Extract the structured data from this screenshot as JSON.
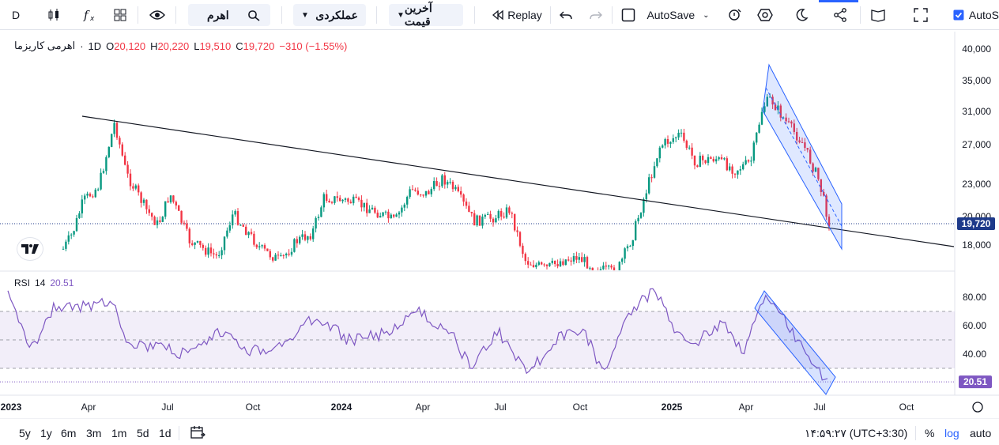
{
  "toolbar": {
    "symbol_short": "D",
    "search_value": "اهرم",
    "compare_label": "عملکردی",
    "price_type_label": "آخرین قیمت",
    "replay_label": "Replay",
    "autosave_label": "AutoSave",
    "autoscale_label": "AutoS"
  },
  "legend": {
    "symbol": "اهرمی کاریزما",
    "interval": "1D",
    "o_label": "O",
    "o": "20,120",
    "h_label": "H",
    "h": "20,220",
    "l_label": "L",
    "l": "19,510",
    "c_label": "C",
    "c": "19,720",
    "change": "−310 (−1.55%)"
  },
  "rsi": {
    "label": "RSI",
    "length": "14",
    "value": "20.51"
  },
  "price_axis": {
    "ticks": [
      "40,000",
      "35,000",
      "31,000",
      "27,000",
      "23,000",
      "18,000"
    ],
    "current_price": "19,720",
    "hidden_tick": "20,000"
  },
  "rsi_axis": {
    "ticks": [
      "80.00",
      "60.00",
      "40.00"
    ],
    "current_value": "20.51"
  },
  "time_axis": [
    "2023",
    "Apr",
    "Jul",
    "Oct",
    "2024",
    "Apr",
    "Jul",
    "Oct",
    "2025",
    "Apr",
    "Jul",
    "Oct"
  ],
  "bottom": {
    "ranges": [
      "5y",
      "1y",
      "6m",
      "3m",
      "1m",
      "5d",
      "1d"
    ],
    "clock": "۱۴:۵۹:۲۷ (UTC+3:30)",
    "percent_label": "%",
    "log_label": "log",
    "auto_label": "auto"
  },
  "colors": {
    "up": "#089981",
    "down": "#f23645",
    "rsi_line": "#7e57c2",
    "channel": "#2962ff",
    "price_tag": "#1e3a8a"
  }
}
